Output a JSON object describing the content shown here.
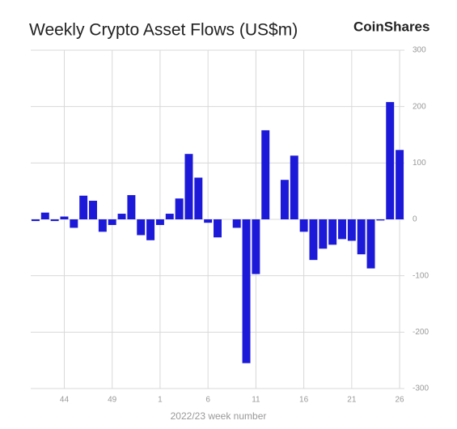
{
  "chart_data": {
    "type": "bar",
    "title": "Weekly Crypto Asset Flows (US$m)",
    "brand": "CoinShares",
    "x_label": "2022/23 week number",
    "categories": [
      null,
      null,
      null,
      "44",
      null,
      null,
      null,
      null,
      "49",
      null,
      null,
      null,
      null,
      "1",
      null,
      null,
      null,
      null,
      "6",
      null,
      null,
      null,
      null,
      "11",
      null,
      null,
      null,
      null,
      "16",
      null,
      null,
      null,
      null,
      "21",
      null,
      null,
      null,
      null,
      "26"
    ],
    "values": [
      -3,
      12,
      -3,
      5,
      -15,
      42,
      33,
      -22,
      -10,
      10,
      43,
      -28,
      -37,
      -10,
      10,
      37,
      116,
      74,
      -6,
      -32,
      0,
      -15,
      -255,
      -97,
      158,
      0,
      70,
      113,
      -22,
      -72,
      -52,
      -45,
      -35,
      -38,
      -62,
      -87,
      -2,
      208,
      123
    ],
    "color": "#1c1ad8",
    "ylim": [
      -300,
      300
    ],
    "yticks": [
      -300,
      -200,
      -100,
      0,
      100,
      200,
      300
    ],
    "grid": true
  }
}
